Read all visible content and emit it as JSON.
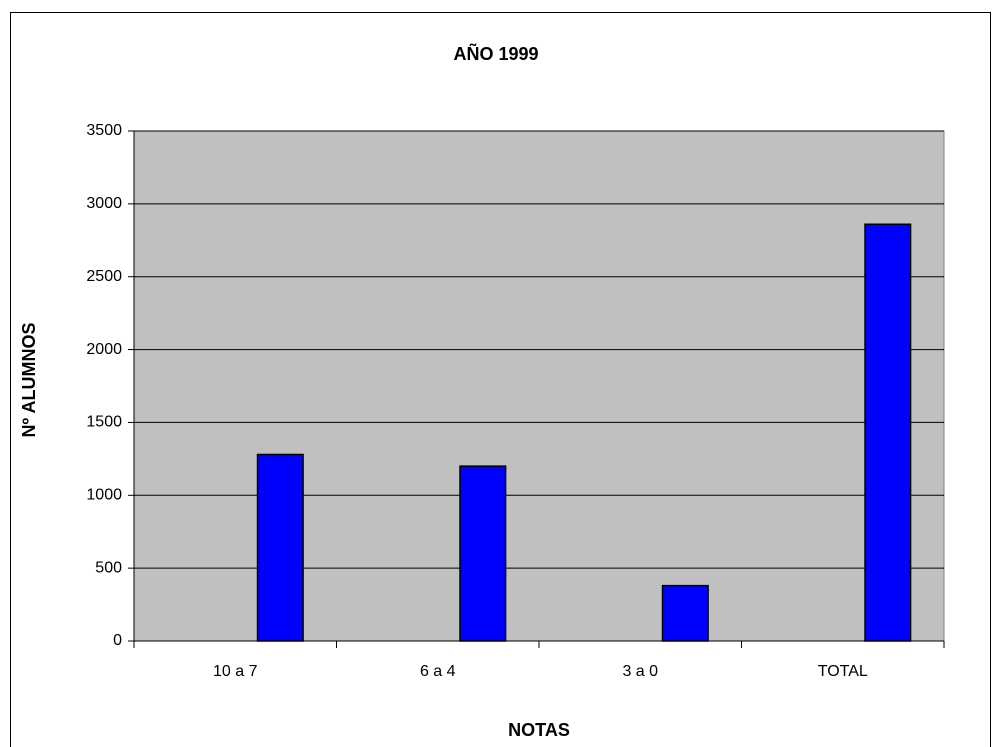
{
  "chart_data": {
    "type": "bar",
    "title": "AÑO 1999",
    "x_label": "NOTAS",
    "y_label": "Nº ALUMNOS",
    "categories": [
      "10 a 7",
      "6 a 4",
      "3 a 0",
      "TOTAL"
    ],
    "values": [
      1280,
      1200,
      380,
      2860
    ],
    "color": "#0000ff",
    "ylim": [
      0,
      3500
    ],
    "yticks": [
      0,
      500,
      1000,
      1500,
      2000,
      2500,
      3000,
      3500
    ],
    "grid": true
  }
}
